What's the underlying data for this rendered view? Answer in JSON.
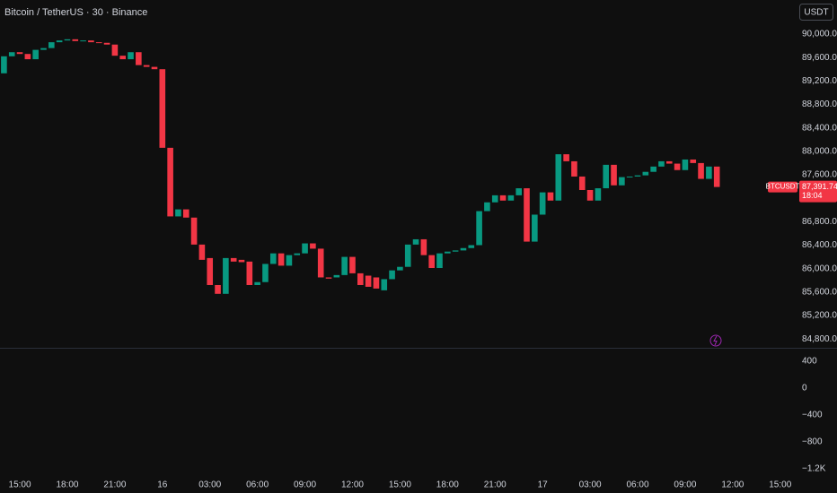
{
  "chart_data": {
    "type": "candlestick",
    "title": "Bitcoin / TetherUS · 30 · Binance",
    "currency_button": "USDT",
    "symbol": "BTCUSDT",
    "last_price_label": "87,391.74",
    "countdown": "18:04",
    "up_color": "#089981",
    "down_color": "#f23645",
    "categories": [
      null,
      null,
      "15:00",
      null,
      null,
      null,
      null,
      null,
      "18:00",
      null,
      null,
      null,
      null,
      null,
      "21:00",
      null,
      null,
      null,
      null,
      null,
      "16",
      null,
      null,
      null,
      null,
      null,
      "03:00",
      null,
      null,
      null,
      null,
      null,
      "06:00",
      null,
      null,
      null,
      null,
      null,
      "09:00",
      null,
      null,
      null,
      null,
      null,
      "12:00",
      null,
      null,
      null,
      null,
      null,
      "15:00",
      null,
      null,
      null,
      null,
      null,
      "18:00",
      null,
      null,
      null,
      null,
      null,
      "21:00",
      null,
      null,
      null,
      null,
      null,
      "17",
      null,
      null,
      null,
      null,
      null,
      "03:00",
      null,
      null,
      null,
      null,
      null,
      "06:00",
      null,
      null,
      null,
      null,
      null,
      "09:00",
      null,
      null,
      null,
      null,
      null,
      "12:00",
      null,
      null,
      null,
      null,
      null,
      "15:00",
      null
    ],
    "open": [
      89330,
      89620,
      89690,
      89660,
      89570,
      89730,
      89760,
      89860,
      89890,
      89910,
      89880,
      89890,
      89860,
      89850,
      89820,
      89630,
      89570,
      89690,
      89470,
      89440,
      89400,
      88060,
      86890,
      87010,
      86870,
      86410,
      86180,
      85720,
      85570,
      86180,
      86150,
      86120,
      85720,
      85770,
      86080,
      86260,
      86050,
      86230,
      86260,
      86430,
      86340,
      85850,
      85850,
      85890,
      86200,
      85920,
      85880,
      85850,
      85630,
      85820,
      85970,
      86030,
      86410,
      86500,
      86230,
      86010,
      86260,
      86290,
      86310,
      86350,
      86400,
      86980,
      87130,
      87250,
      87160,
      87250,
      87370,
      86460,
      86920,
      87300,
      87160,
      87950,
      87830,
      87570,
      87340,
      87160,
      87370,
      87770,
      87420,
      87560,
      87570,
      87590,
      87650,
      87740,
      87830,
      87790,
      87680,
      87860,
      87800,
      87530,
      87740,
      null,
      null,
      null,
      null,
      null,
      null,
      null,
      null,
      null
    ],
    "close": [
      89620,
      89690,
      89660,
      89570,
      89730,
      89760,
      89860,
      89890,
      89910,
      89880,
      89890,
      89860,
      89850,
      89820,
      89630,
      89570,
      89690,
      89470,
      89440,
      89400,
      88060,
      86890,
      87010,
      86870,
      86410,
      86150,
      85720,
      85570,
      86180,
      86120,
      86110,
      85720,
      85770,
      86080,
      86260,
      86050,
      86230,
      86260,
      86430,
      86340,
      85850,
      85830,
      85890,
      86200,
      85920,
      85720,
      85690,
      85660,
      85820,
      85970,
      86030,
      86410,
      86500,
      86230,
      86010,
      86260,
      86290,
      86310,
      86350,
      86400,
      86980,
      87130,
      87250,
      87160,
      87250,
      87370,
      86460,
      86920,
      87300,
      87160,
      87950,
      87830,
      87570,
      87340,
      87160,
      87370,
      87770,
      87420,
      87560,
      87570,
      87590,
      87650,
      87740,
      87830,
      87790,
      87680,
      87860,
      87800,
      87530,
      87740,
      87391.74,
      null,
      null,
      null,
      null,
      null,
      null,
      null,
      null,
      null
    ],
    "ylim": [
      84650,
      90580
    ],
    "yticks": [
      {
        "value": 90000,
        "label": "90,000.00"
      },
      {
        "value": 89600,
        "label": "89,600.00"
      },
      {
        "value": 89200,
        "label": "89,200.00"
      },
      {
        "value": 88800,
        "label": "88,800.00"
      },
      {
        "value": 88400,
        "label": "88,400.00"
      },
      {
        "value": 88000,
        "label": "88,000.00"
      },
      {
        "value": 87600,
        "label": "87,600.00"
      },
      {
        "value": 86800,
        "label": "86,800.00"
      },
      {
        "value": 86400,
        "label": "86,400.00"
      },
      {
        "value": 86000,
        "label": "86,000.00"
      },
      {
        "value": 85600,
        "label": "85,600.00"
      },
      {
        "value": 85200,
        "label": "85,200.00"
      },
      {
        "value": 84800,
        "label": "84,800.00"
      }
    ],
    "y2lim": [
      -1430,
      600
    ],
    "y2ticks": [
      400,
      0,
      {
        "value": -400,
        "label": "−400"
      },
      {
        "value": -800,
        "label": "−800"
      },
      {
        "value": -1200,
        "label": "−1.2K"
      }
    ],
    "grid": false
  }
}
